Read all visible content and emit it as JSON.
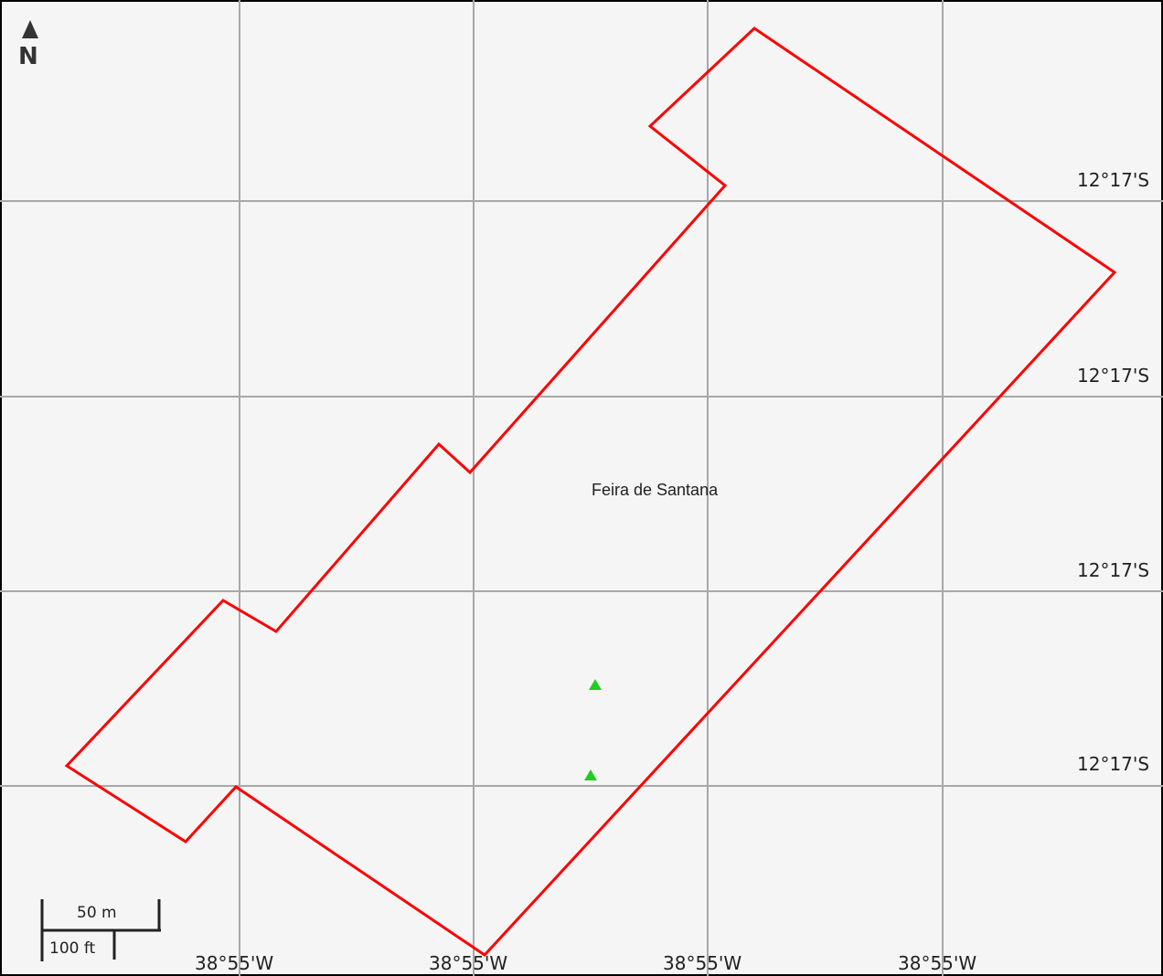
{
  "map": {
    "place_label": "Feira de Santana",
    "north_label": "N",
    "latitude_labels": [
      "12°17'S",
      "12°17'S",
      "12°17'S",
      "12°17'S"
    ],
    "longitude_labels": [
      "38°55'W",
      "38°55'W",
      "38°55'W",
      "38°55'W"
    ],
    "scale_bar": {
      "metric_label": "50 m",
      "imperial_label": "100 ft"
    },
    "colors": {
      "boundary": "#ff0000",
      "markers": "#22cc22",
      "grid": "#a8a8a8",
      "background": "#f5f5f5"
    },
    "markers": [
      {
        "name": "marker-triangle-1"
      },
      {
        "name": "marker-triangle-2"
      }
    ]
  }
}
